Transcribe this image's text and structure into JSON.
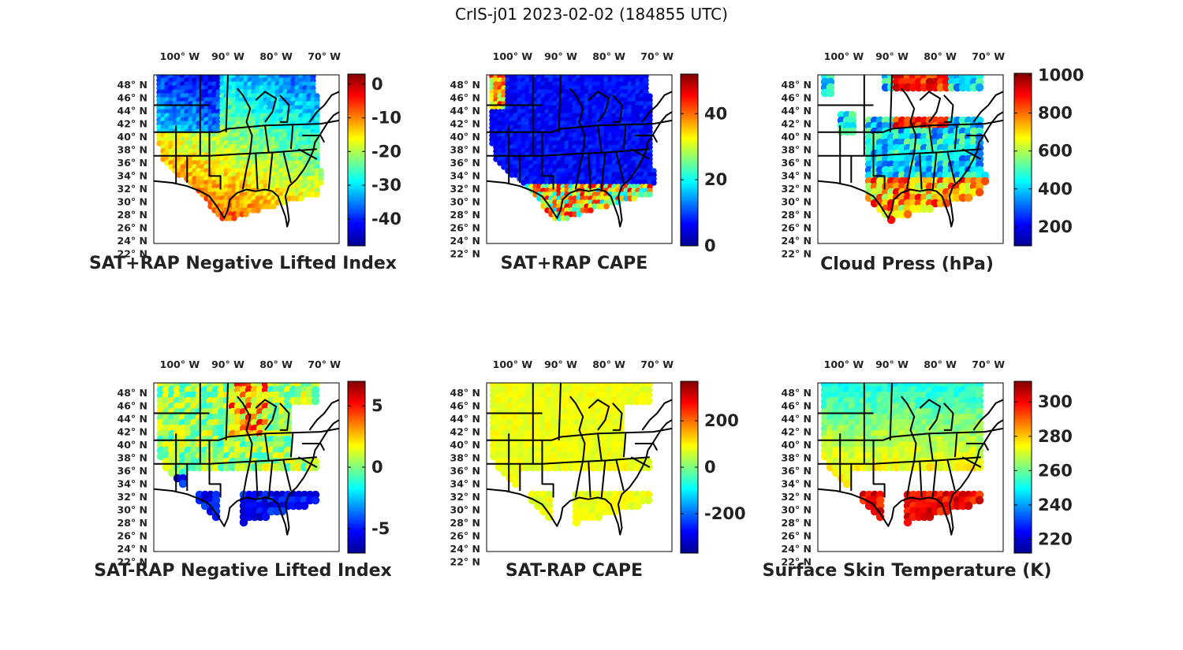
{
  "title": "CrIS-j01 2023-02-02 (184855 UTC)",
  "colors": {
    "frame": "#000000",
    "state_lines": "#000000",
    "text": "#222222"
  },
  "colormap": "jet",
  "map": {
    "lon_ticks": [
      "100° W",
      "90° W",
      "80° W",
      "70° W"
    ],
    "lat_ticks": [
      "48° N",
      "46° N",
      "44° N",
      "42° N",
      "40° N",
      "38° N",
      "36° N",
      "34° N",
      "32° N",
      "30° N",
      "28° N",
      "26° N",
      "24° N",
      "22° N"
    ],
    "lon_range": [
      -106,
      -68
    ],
    "lat_range": [
      22,
      50
    ]
  },
  "panels": [
    {
      "title": "SAT+RAP Negative Lifted Index",
      "colorbar_ticks": [
        "0",
        "-10",
        "-20",
        "-30",
        "-40"
      ],
      "color_range": [
        -48,
        3
      ]
    },
    {
      "title": "SAT+RAP CAPE",
      "colorbar_ticks": [
        "40",
        "20",
        "0"
      ],
      "color_range": [
        0,
        52
      ]
    },
    {
      "title": "Cloud Press (hPa)",
      "colorbar_ticks": [
        "1000",
        "800",
        "600",
        "400",
        "200"
      ],
      "color_range": [
        100,
        1010
      ]
    },
    {
      "title": "SAT-RAP Negative Lifted Index",
      "colorbar_ticks": [
        "5",
        "0",
        "-5"
      ],
      "color_range": [
        -7,
        7
      ]
    },
    {
      "title": "SAT-RAP CAPE",
      "colorbar_ticks": [
        "200",
        "0",
        "-200"
      ],
      "color_range": [
        -370,
        370
      ]
    },
    {
      "title": "Surface Skin Temperature (K)",
      "colorbar_ticks": [
        "300",
        "280",
        "260",
        "240",
        "220"
      ],
      "color_range": [
        212,
        312
      ]
    }
  ]
}
